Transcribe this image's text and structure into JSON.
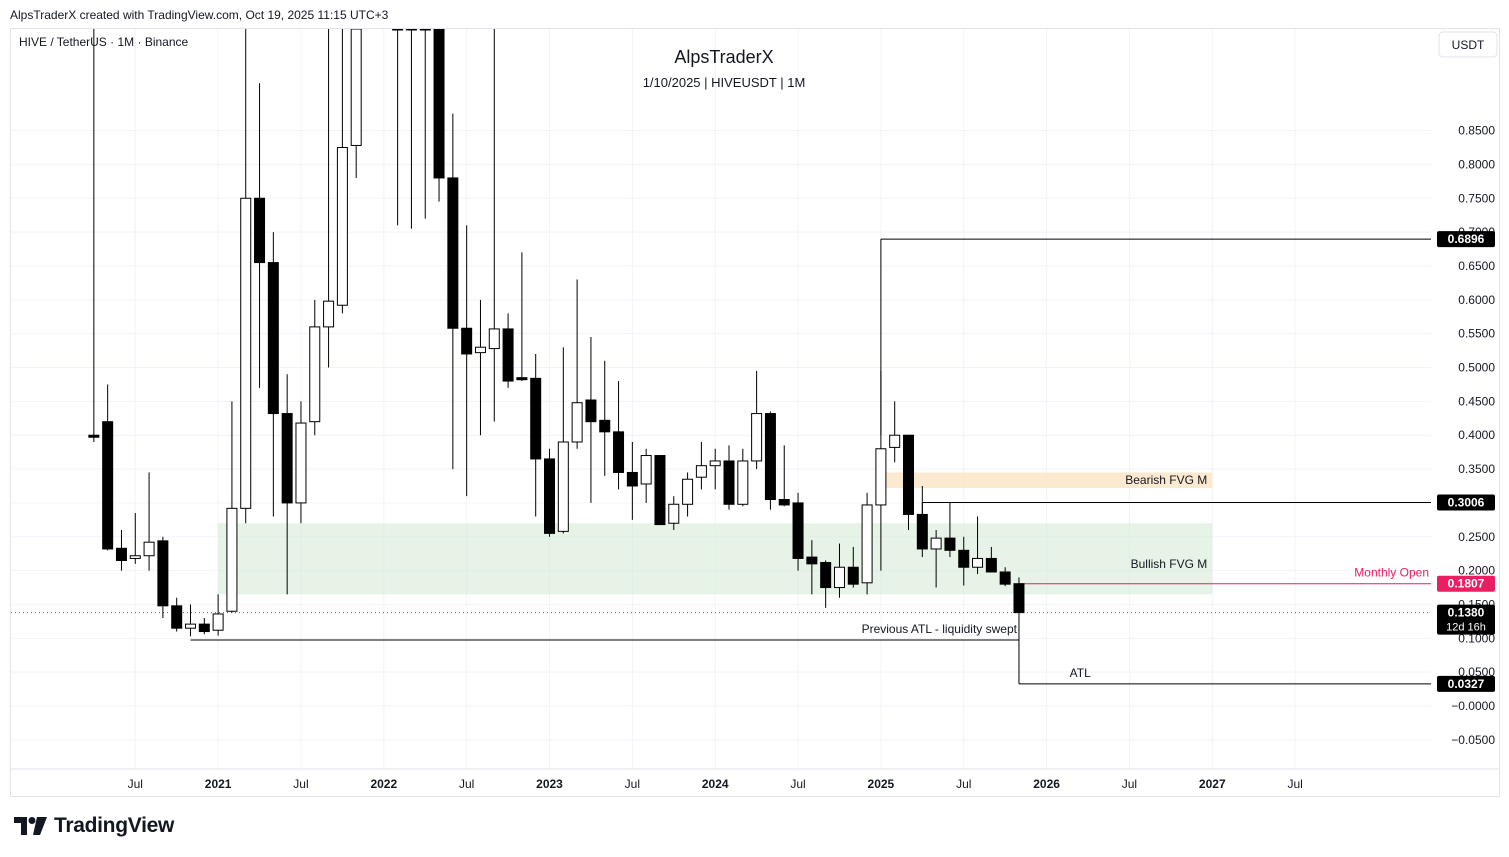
{
  "header": {
    "created_by": "AlpsTraderX created with TradingView.com, Oct 19, 2025 11:15 UTC+3"
  },
  "footer": {
    "brand": "TradingView"
  },
  "colors": {
    "candle_up_fill": "#ffffff",
    "candle_down_fill": "#000000",
    "candle_border": "#000000",
    "bullish_zone": "#d4e9d4",
    "bearish_zone": "#fbe3c0",
    "monthly_open": "#e91e63",
    "grid": "#f0f3fa",
    "axis_text": "#131722"
  },
  "chart_data": {
    "type": "candlestick",
    "symbol_line": "HIVE / TetherUS · 1M · Binance",
    "title": "AlpsTraderX",
    "subtitle": "1/10/2025  |  HIVEUSDT  |  1M",
    "currency_badge": "USDT",
    "ylim": [
      -0.093,
      1.0
    ],
    "y_ticks": [
      -0.05,
      0.0,
      0.05,
      0.1,
      0.15,
      0.2,
      0.25,
      0.3,
      0.35,
      0.4,
      0.45,
      0.5,
      0.55,
      0.6,
      0.65,
      0.7,
      0.75,
      0.8,
      0.85
    ],
    "y_tick_labels": [
      "−0.0500",
      "−0.0000",
      "0.0500",
      "0.1000",
      "0.1500",
      "0.2000",
      "0.2500",
      "0.3000",
      "0.3500",
      "0.4000",
      "0.4500",
      "0.5000",
      "0.5500",
      "0.6000",
      "0.6500",
      "0.7000",
      "0.7500",
      "0.8000",
      "0.8500"
    ],
    "x_ticks": [
      {
        "label": "Jul",
        "month": 6
      },
      {
        "label": "2021",
        "month": 12,
        "bold": true
      },
      {
        "label": "Jul",
        "month": 18
      },
      {
        "label": "2022",
        "month": 24,
        "bold": true
      },
      {
        "label": "Jul",
        "month": 30
      },
      {
        "label": "2023",
        "month": 36,
        "bold": true
      },
      {
        "label": "Jul",
        "month": 42
      },
      {
        "label": "2024",
        "month": 48,
        "bold": true
      },
      {
        "label": "Jul",
        "month": 54
      },
      {
        "label": "2025",
        "month": 60,
        "bold": true
      },
      {
        "label": "Jul",
        "month": 66
      },
      {
        "label": "2026",
        "month": 72,
        "bold": true
      },
      {
        "label": "Jul",
        "month": 78
      },
      {
        "label": "2027",
        "month": 84,
        "bold": true
      },
      {
        "label": "Jul",
        "month": 90
      }
    ],
    "x_range_months": [
      -3.0,
      99.84
    ],
    "month_index_note": "0 = Jan 2020",
    "candles": [
      {
        "t": 3,
        "o": 0.4,
        "h": 1.0,
        "l": 0.39,
        "c": 0.397
      },
      {
        "t": 4,
        "o": 0.42,
        "h": 0.475,
        "l": 0.23,
        "c": 0.232
      },
      {
        "t": 5,
        "o": 0.233,
        "h": 0.26,
        "l": 0.2,
        "c": 0.215
      },
      {
        "t": 6,
        "o": 0.218,
        "h": 0.285,
        "l": 0.21,
        "c": 0.222
      },
      {
        "t": 7,
        "o": 0.222,
        "h": 0.345,
        "l": 0.2,
        "c": 0.242
      },
      {
        "t": 8,
        "o": 0.244,
        "h": 0.25,
        "l": 0.13,
        "c": 0.148
      },
      {
        "t": 9,
        "o": 0.148,
        "h": 0.16,
        "l": 0.11,
        "c": 0.115
      },
      {
        "t": 10,
        "o": 0.115,
        "h": 0.15,
        "l": 0.103,
        "c": 0.121
      },
      {
        "t": 11,
        "o": 0.121,
        "h": 0.13,
        "l": 0.106,
        "c": 0.11
      },
      {
        "t": 12,
        "o": 0.112,
        "h": 0.165,
        "l": 0.104,
        "c": 0.136
      },
      {
        "t": 13,
        "o": 0.14,
        "h": 0.45,
        "l": 0.138,
        "c": 0.292
      },
      {
        "t": 14,
        "o": 0.292,
        "h": 1.0,
        "l": 0.27,
        "c": 0.75
      },
      {
        "t": 15,
        "o": 0.75,
        "h": 0.92,
        "l": 0.47,
        "c": 0.655
      },
      {
        "t": 16,
        "o": 0.655,
        "h": 0.7,
        "l": 0.28,
        "c": 0.432
      },
      {
        "t": 17,
        "o": 0.432,
        "h": 0.49,
        "l": 0.165,
        "c": 0.3
      },
      {
        "t": 18,
        "o": 0.3,
        "h": 0.45,
        "l": 0.27,
        "c": 0.418
      },
      {
        "t": 19,
        "o": 0.42,
        "h": 0.6,
        "l": 0.4,
        "c": 0.56
      },
      {
        "t": 20,
        "o": 0.56,
        "h": 1.0,
        "l": 0.5,
        "c": 0.598
      },
      {
        "t": 21,
        "o": 0.592,
        "h": 1.0,
        "l": 0.58,
        "c": 0.825
      },
      {
        "t": 22,
        "o": 0.828,
        "h": 1.0,
        "l": 0.78,
        "c": 1.0
      },
      {
        "t": 25,
        "o": 1.0,
        "h": 1.0,
        "l": 0.71,
        "c": 1.0
      },
      {
        "t": 26,
        "o": 1.0,
        "h": 1.0,
        "l": 0.705,
        "c": 1.0
      },
      {
        "t": 27,
        "o": 1.0,
        "h": 1.0,
        "l": 0.72,
        "c": 1.0
      },
      {
        "t": 28,
        "o": 1.0,
        "h": 1.0,
        "l": 0.745,
        "c": 0.78
      },
      {
        "t": 29,
        "o": 0.78,
        "h": 0.875,
        "l": 0.35,
        "c": 0.558
      },
      {
        "t": 30,
        "o": 0.558,
        "h": 0.71,
        "l": 0.31,
        "c": 0.52
      },
      {
        "t": 31,
        "o": 0.522,
        "h": 0.6,
        "l": 0.4,
        "c": 0.53
      },
      {
        "t": 32,
        "o": 0.528,
        "h": 1.0,
        "l": 0.42,
        "c": 0.557
      },
      {
        "t": 33,
        "o": 0.557,
        "h": 0.58,
        "l": 0.47,
        "c": 0.48
      },
      {
        "t": 34,
        "o": 0.485,
        "h": 0.67,
        "l": 0.48,
        "c": 0.482
      },
      {
        "t": 35,
        "o": 0.484,
        "h": 0.52,
        "l": 0.28,
        "c": 0.365
      },
      {
        "t": 36,
        "o": 0.365,
        "h": 0.38,
        "l": 0.25,
        "c": 0.255
      },
      {
        "t": 37,
        "o": 0.258,
        "h": 0.53,
        "l": 0.255,
        "c": 0.39
      },
      {
        "t": 38,
        "o": 0.39,
        "h": 0.63,
        "l": 0.38,
        "c": 0.448
      },
      {
        "t": 39,
        "o": 0.452,
        "h": 0.545,
        "l": 0.3,
        "c": 0.42
      },
      {
        "t": 40,
        "o": 0.422,
        "h": 0.51,
        "l": 0.34,
        "c": 0.405
      },
      {
        "t": 41,
        "o": 0.405,
        "h": 0.48,
        "l": 0.32,
        "c": 0.345
      },
      {
        "t": 42,
        "o": 0.345,
        "h": 0.39,
        "l": 0.275,
        "c": 0.325
      },
      {
        "t": 43,
        "o": 0.328,
        "h": 0.38,
        "l": 0.3,
        "c": 0.37
      },
      {
        "t": 44,
        "o": 0.37,
        "h": 0.37,
        "l": 0.27,
        "c": 0.268
      },
      {
        "t": 45,
        "o": 0.27,
        "h": 0.31,
        "l": 0.26,
        "c": 0.298
      },
      {
        "t": 46,
        "o": 0.298,
        "h": 0.345,
        "l": 0.28,
        "c": 0.335
      },
      {
        "t": 47,
        "o": 0.338,
        "h": 0.39,
        "l": 0.32,
        "c": 0.355
      },
      {
        "t": 48,
        "o": 0.355,
        "h": 0.38,
        "l": 0.32,
        "c": 0.362
      },
      {
        "t": 49,
        "o": 0.362,
        "h": 0.385,
        "l": 0.29,
        "c": 0.298
      },
      {
        "t": 50,
        "o": 0.298,
        "h": 0.38,
        "l": 0.295,
        "c": 0.362
      },
      {
        "t": 51,
        "o": 0.362,
        "h": 0.495,
        "l": 0.35,
        "c": 0.432
      },
      {
        "t": 52,
        "o": 0.432,
        "h": 0.435,
        "l": 0.29,
        "c": 0.305
      },
      {
        "t": 53,
        "o": 0.305,
        "h": 0.385,
        "l": 0.295,
        "c": 0.297
      },
      {
        "t": 54,
        "o": 0.3,
        "h": 0.315,
        "l": 0.2,
        "c": 0.218
      },
      {
        "t": 55,
        "o": 0.22,
        "h": 0.245,
        "l": 0.165,
        "c": 0.21
      },
      {
        "t": 56,
        "o": 0.212,
        "h": 0.215,
        "l": 0.145,
        "c": 0.175
      },
      {
        "t": 57,
        "o": 0.175,
        "h": 0.24,
        "l": 0.16,
        "c": 0.205
      },
      {
        "t": 58,
        "o": 0.205,
        "h": 0.235,
        "l": 0.175,
        "c": 0.18
      },
      {
        "t": 59,
        "o": 0.182,
        "h": 0.315,
        "l": 0.165,
        "c": 0.297
      },
      {
        "t": 60,
        "o": 0.297,
        "h": 0.495,
        "l": 0.2,
        "c": 0.38
      },
      {
        "t": 61,
        "o": 0.382,
        "h": 0.45,
        "l": 0.36,
        "c": 0.4
      },
      {
        "t": 62,
        "o": 0.4,
        "h": 0.4,
        "l": 0.26,
        "c": 0.283
      },
      {
        "t": 63,
        "o": 0.283,
        "h": 0.325,
        "l": 0.22,
        "c": 0.232
      },
      {
        "t": 64,
        "o": 0.232,
        "h": 0.26,
        "l": 0.175,
        "c": 0.248
      },
      {
        "t": 65,
        "o": 0.248,
        "h": 0.3,
        "l": 0.22,
        "c": 0.23
      },
      {
        "t": 66,
        "o": 0.23,
        "h": 0.25,
        "l": 0.178,
        "c": 0.205
      },
      {
        "t": 67,
        "o": 0.205,
        "h": 0.28,
        "l": 0.195,
        "c": 0.218
      },
      {
        "t": 68,
        "o": 0.218,
        "h": 0.235,
        "l": 0.2,
        "c": 0.198
      },
      {
        "t": 69,
        "o": 0.198,
        "h": 0.205,
        "l": 0.177,
        "c": 0.18
      },
      {
        "t": 70,
        "o": 0.1807,
        "h": 0.19,
        "l": 0.134,
        "c": 0.138
      }
    ],
    "horizontal_levels": [
      {
        "name": "ath-level",
        "value": 0.6896,
        "from_month": 60,
        "label": "0.6896"
      },
      {
        "name": "resistance-level",
        "value": 0.3006,
        "from_month": 63,
        "label": "0.3006"
      },
      {
        "name": "monthly-open",
        "value": 0.1807,
        "from_month": 70,
        "label": "0.1807",
        "text": "Monthly Open"
      },
      {
        "name": "previous-atl",
        "value": 0.0975,
        "from_month": 10,
        "to_month": 70,
        "text": "Previous ATL - liquidity swept"
      },
      {
        "name": "atl-level",
        "value": 0.0327,
        "from_month": 70,
        "label": "0.0327",
        "text": "ATL"
      }
    ],
    "vertical_connectors": [
      {
        "name": "ath-connector",
        "month": 60,
        "from": 0.4,
        "to": 0.6896
      },
      {
        "name": "resistance-connector",
        "month": 63,
        "from": 0.248,
        "to": 0.3006
      },
      {
        "name": "atl-connector",
        "month": 70,
        "from": 0.134,
        "to": 0.0327
      }
    ],
    "zones": [
      {
        "name": "bullish-fvg-zone",
        "label": "Bullish FVG M",
        "from_month": 12,
        "to_month": 84,
        "low": 0.165,
        "high": 0.27
      },
      {
        "name": "bearish-fvg-zone",
        "label": "Bearish FVG M",
        "from_month": 60,
        "to_month": 84,
        "low": 0.322,
        "high": 0.345
      }
    ],
    "current_price": {
      "value": 0.138,
      "label": "0.1380",
      "countdown": "12d 16h"
    }
  }
}
